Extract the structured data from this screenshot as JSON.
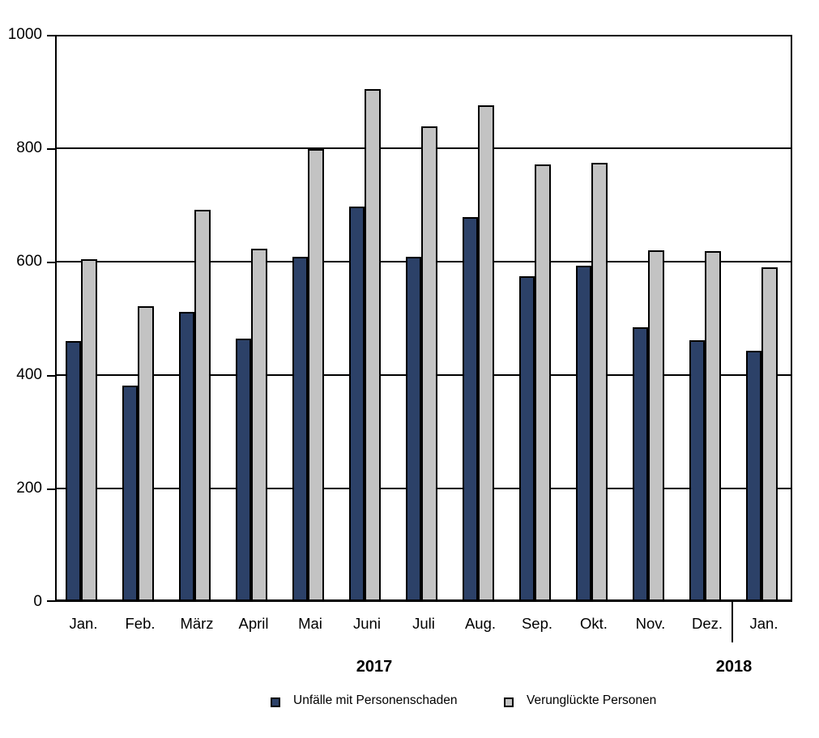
{
  "chart_data": {
    "type": "bar",
    "title": "",
    "xlabel": "",
    "ylabel": "",
    "ylim": [
      0,
      1000
    ],
    "ytick_interval": 200,
    "yticks": [
      0,
      200,
      400,
      600,
      800,
      1000
    ],
    "grid": "horizontal",
    "legend_position": "bottom",
    "categories": [
      "Jan.",
      "Feb.",
      "März",
      "April",
      "Mai",
      "Juni",
      "Juli",
      "Aug.",
      "Sep.",
      "Okt.",
      "Nov.",
      "Dez.",
      "Jan."
    ],
    "year_groups": [
      {
        "label": "2017",
        "months": 12
      },
      {
        "label": "2018",
        "months": 1
      }
    ],
    "series": [
      {
        "name": "Unfälle mit Personenschaden",
        "color": "#2c4168",
        "values": [
          460,
          382,
          511,
          465,
          608,
          697,
          608,
          678,
          574,
          593,
          484,
          462,
          443
        ]
      },
      {
        "name": "Verunglückte Personen",
        "color": "#c3c3c3",
        "values": [
          605,
          522,
          692,
          623,
          798,
          905,
          839,
          876,
          771,
          774,
          620,
          619,
          590
        ]
      }
    ]
  },
  "colors": {
    "axis": "#000000",
    "background": "#ffffff",
    "bar_border": "#000000"
  }
}
